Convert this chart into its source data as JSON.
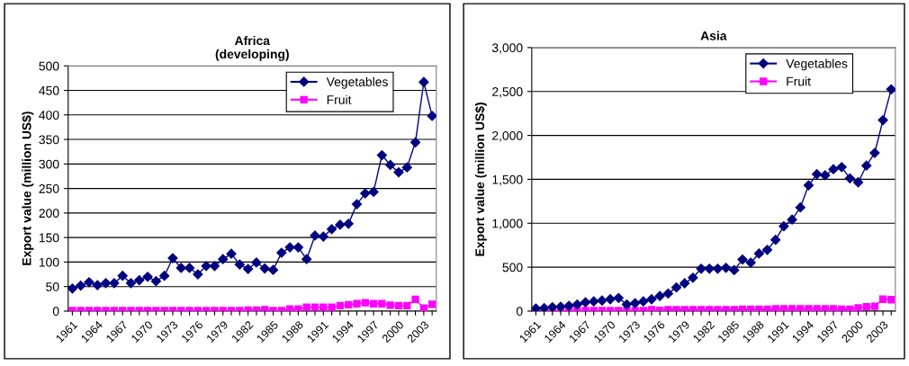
{
  "chart_data": [
    {
      "type": "line",
      "title": "Africa\n(developing)",
      "ylabel": "Export value (million US$)",
      "categories": [
        "1961",
        null,
        null,
        "1964",
        null,
        null,
        "1967",
        null,
        null,
        "1970",
        null,
        null,
        "1973",
        null,
        null,
        "1976",
        null,
        null,
        "1979",
        null,
        null,
        "1982",
        null,
        null,
        "1985",
        null,
        null,
        "1988",
        null,
        null,
        "1991",
        null,
        null,
        "1994",
        null,
        null,
        "1997",
        null,
        null,
        "2000",
        null,
        null,
        "2003",
        null
      ],
      "series": [
        {
          "name": "Vegetables",
          "color": "#000080",
          "marker": "diamond",
          "values": [
            46,
            52,
            59,
            53,
            57,
            57,
            72,
            57,
            63,
            70,
            61,
            72,
            108,
            88,
            88,
            75,
            92,
            92,
            106,
            117,
            95,
            86,
            99,
            87,
            84,
            119,
            130,
            130,
            106,
            154,
            152,
            167,
            176,
            178,
            218,
            240,
            243,
            318,
            298,
            283,
            293,
            344,
            467,
            398
          ]
        },
        {
          "name": "Fruit",
          "color": "#ff00ff",
          "marker": "square",
          "values": [
            1,
            1,
            1,
            1,
            1,
            1,
            1,
            1,
            1,
            1,
            1,
            1,
            1,
            1,
            1,
            1,
            1,
            1,
            1,
            1,
            1,
            2,
            2,
            3,
            1,
            1,
            4,
            4,
            8,
            8,
            8,
            8,
            11,
            13,
            15,
            17,
            15,
            15,
            12,
            11,
            11,
            24,
            6,
            14
          ]
        }
      ],
      "ylim": [
        0,
        500
      ],
      "yticks": [
        0,
        50,
        100,
        150,
        200,
        250,
        300,
        350,
        400,
        450,
        500
      ],
      "grid": "y",
      "legend": "top right"
    },
    {
      "type": "line",
      "title": "Asia",
      "ylabel": "Export value (million US$)",
      "categories": [
        "1961",
        null,
        null,
        "1964",
        null,
        null,
        "1967",
        null,
        null,
        "1970",
        null,
        null,
        "1973",
        null,
        null,
        "1976",
        null,
        null,
        "1979",
        null,
        null,
        "1982",
        null,
        null,
        "1985",
        null,
        null,
        "1988",
        null,
        null,
        "1991",
        null,
        null,
        "1994",
        null,
        null,
        "1997",
        null,
        null,
        "2000",
        null,
        null,
        "2003",
        null
      ],
      "series": [
        {
          "name": "Vegetables",
          "color": "#000080",
          "marker": "diamond",
          "values": [
            30,
            35,
            45,
            50,
            60,
            75,
            100,
            110,
            120,
            135,
            150,
            75,
            90,
            110,
            135,
            172,
            200,
            269,
            317,
            380,
            483,
            483,
            483,
            493,
            466,
            587,
            552,
            655,
            697,
            811,
            966,
            1042,
            1180,
            1432,
            1559,
            1546,
            1615,
            1639,
            1511,
            1466,
            1656,
            1801,
            2174,
            2525
          ]
        },
        {
          "name": "Fruit",
          "color": "#ff00ff",
          "marker": "square",
          "values": [
            5,
            5,
            5,
            5,
            5,
            5,
            5,
            5,
            5,
            5,
            5,
            5,
            5,
            5,
            15,
            8,
            15,
            15,
            15,
            15,
            15,
            15,
            15,
            15,
            15,
            20,
            20,
            20,
            20,
            25,
            25,
            25,
            25,
            25,
            25,
            25,
            25,
            20,
            20,
            35,
            50,
            55,
            135,
            130
          ]
        }
      ],
      "ylim": [
        0,
        3000
      ],
      "yticks": [
        0,
        500,
        {
          "value": 1000,
          "label": "1,000"
        },
        {
          "value": 1500,
          "label": "1,500"
        },
        {
          "value": 2000,
          "label": "2,000"
        },
        {
          "value": 2500,
          "label": "2,500"
        },
        {
          "value": 3000,
          "label": "3,000"
        }
      ],
      "grid": "y",
      "legend": "top right"
    }
  ]
}
